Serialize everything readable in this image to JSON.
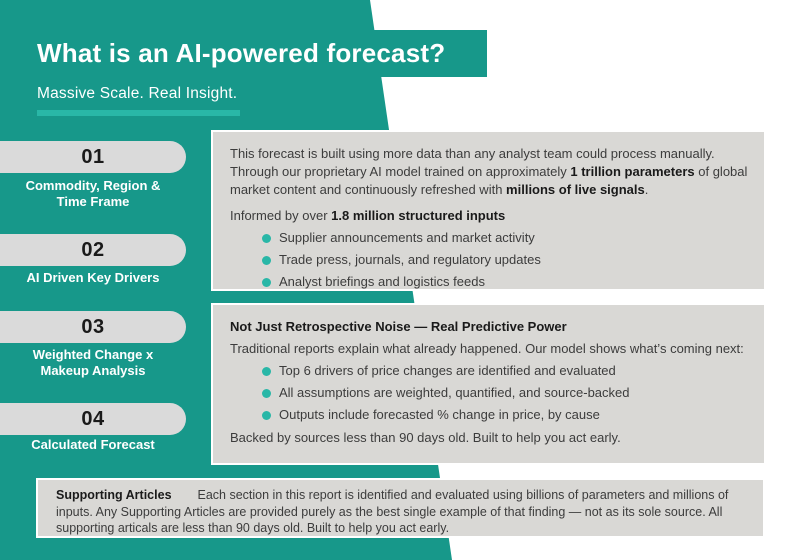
{
  "header": {
    "title": "What is an AI-powered forecast?",
    "subtitle": "Massive Scale. Real Insight."
  },
  "colors": {
    "teal": "#17988a",
    "accent": "#29b7a7",
    "boxgray": "#d9d8d5",
    "pillgray": "#dadada"
  },
  "steps": [
    {
      "number": "01",
      "label": "Commodity, Region &\nTime Frame"
    },
    {
      "number": "02",
      "label": "AI Driven Key Drivers"
    },
    {
      "number": "03",
      "label": "Weighted Change x\nMakeup Analysis"
    },
    {
      "number": "04",
      "label": "Calculated Forecast"
    }
  ],
  "box1": {
    "intro": [
      {
        "t": "This forecast is built using more data than any analyst team could process manually. Through our proprietary AI model trained on approximately ",
        "b": false
      },
      {
        "t": "1 trillion parameters",
        "b": true
      },
      {
        "t": " of global market content and continuously refreshed with ",
        "b": false
      },
      {
        "t": "millions of live signals",
        "b": true
      },
      {
        "t": ".",
        "b": false
      }
    ],
    "informed": [
      {
        "t": "Informed by over ",
        "b": false
      },
      {
        "t": "1.8 million structured inputs",
        "b": true
      }
    ],
    "bullets": [
      "Supplier announcements and market activity",
      "Trade press, journals, and regulatory updates",
      "Analyst briefings and logistics feeds"
    ]
  },
  "box2": {
    "heading": "Not Just Retrospective Noise — Real Predictive Power",
    "body": "Traditional reports explain what already happened. Our model shows what’s coming next:",
    "bullets": [
      "Top 6 drivers of price changes are identified and evaluated",
      "All assumptions are weighted, quantified, and source-backed",
      "Outputs include forecasted % change in price, by cause"
    ],
    "footer": "Backed by sources less than 90 days old. Built to help you act early."
  },
  "box3": {
    "label": "Supporting Articles",
    "body": "Each section in this report is identified and evaluated using billions of parameters and millions of inputs. Any Supporting Articles are provided purely as the best single example of that finding — not as its sole source. All supporting articals are less than 90 days old. Built to help you act early."
  }
}
